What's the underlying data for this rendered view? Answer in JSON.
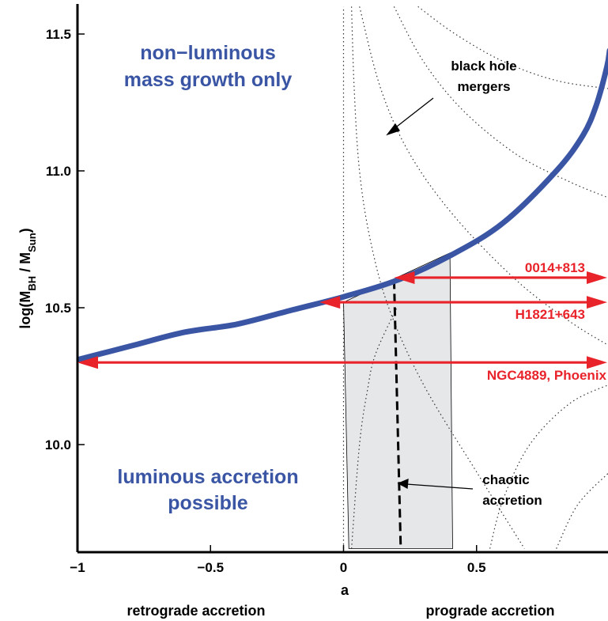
{
  "chart_data": {
    "type": "line",
    "xlabel": "a",
    "ylabel_main": "log(M",
    "ylabel_sub1": "BH",
    "ylabel_mid": " / M",
    "ylabel_sub2": "Sun",
    "ylabel_end": ")",
    "xlim": [
      -1,
      1
    ],
    "ylim": [
      9.62,
      11.6
    ],
    "x_ticks": [
      {
        "value": -1,
        "label": "−1"
      },
      {
        "value": -0.5,
        "label": "−0.5"
      },
      {
        "value": 0,
        "label": "0"
      },
      {
        "value": 0.5,
        "label": "0.5"
      }
    ],
    "y_ticks": [
      {
        "value": 10.0,
        "label": "10.0"
      },
      {
        "value": 10.5,
        "label": "10.5"
      },
      {
        "value": 11.0,
        "label": "11.0"
      },
      {
        "value": 11.5,
        "label": "11.5"
      }
    ],
    "grid": false,
    "curve": {
      "color": "#3a55a4",
      "points": [
        [
          -1.0,
          10.31
        ],
        [
          -0.8,
          10.36
        ],
        [
          -0.6,
          10.41
        ],
        [
          -0.4,
          10.44
        ],
        [
          -0.2,
          10.49
        ],
        [
          0.0,
          10.54
        ],
        [
          0.2,
          10.6
        ],
        [
          0.4,
          10.69
        ],
        [
          0.6,
          10.81
        ],
        [
          0.8,
          11.0
        ],
        [
          0.9,
          11.13
        ],
        [
          0.95,
          11.24
        ],
        [
          0.99,
          11.38
        ],
        [
          1.0,
          11.44
        ]
      ]
    },
    "chaotic_band": {
      "color": "#e6e7e9",
      "corners": [
        [
          0.0,
          10.52
        ],
        [
          0.4,
          10.7
        ],
        [
          0.41,
          9.62
        ],
        [
          0.02,
          9.62
        ]
      ],
      "center_line": [
        [
          0.19,
          10.6
        ],
        [
          0.215,
          9.62
        ]
      ]
    },
    "merger_contours": [
      [
        [
          0.0,
          9.62
        ],
        [
          0.0,
          11.6
        ]
      ],
      [
        [
          0.03,
          11.6
        ],
        [
          0.04,
          11.3
        ],
        [
          0.06,
          11.0
        ],
        [
          0.1,
          10.75
        ],
        [
          0.17,
          10.5
        ],
        [
          0.3,
          10.22
        ],
        [
          0.5,
          9.9
        ],
        [
          0.68,
          9.62
        ]
      ],
      [
        [
          0.06,
          11.6
        ],
        [
          0.14,
          11.3
        ],
        [
          0.25,
          11.06
        ],
        [
          0.42,
          10.83
        ],
        [
          0.65,
          10.6
        ],
        [
          0.85,
          10.45
        ],
        [
          1.0,
          10.36
        ]
      ],
      [
        [
          0.19,
          11.6
        ],
        [
          0.3,
          11.4
        ],
        [
          0.45,
          11.22
        ],
        [
          0.65,
          11.06
        ],
        [
          0.85,
          10.96
        ],
        [
          1.0,
          10.9
        ]
      ],
      [
        [
          0.28,
          11.6
        ],
        [
          0.42,
          11.5
        ],
        [
          0.6,
          11.4
        ],
        [
          0.8,
          11.33
        ],
        [
          1.0,
          11.3
        ]
      ],
      [
        [
          0.03,
          9.62
        ],
        [
          0.06,
          10.0
        ],
        [
          0.09,
          10.2
        ],
        [
          0.12,
          10.33
        ],
        [
          0.2,
          10.5
        ]
      ],
      [
        [
          0.55,
          9.62
        ],
        [
          0.6,
          9.8
        ],
        [
          0.7,
          10.0
        ],
        [
          0.85,
          10.15
        ],
        [
          1.0,
          10.22
        ]
      ],
      [
        [
          0.8,
          9.62
        ],
        [
          0.88,
          9.78
        ],
        [
          1.0,
          9.9
        ]
      ]
    ],
    "arrows": [
      {
        "label": "0014+813",
        "from": 1.0,
        "to": 0.19,
        "y": 10.61
      },
      {
        "label": "H1821+643",
        "from": 1.0,
        "to": -0.09,
        "y": 10.52
      },
      {
        "label": "NGC4889, Phoenix",
        "from": 1.0,
        "to": -1.0,
        "y": 10.3
      }
    ],
    "arrow_color": "#e8232a"
  },
  "annotations": {
    "non_luminous_line1": "non−luminous",
    "non_luminous_line2": "mass growth only",
    "luminous_line1": "luminous accretion",
    "luminous_line2": "possible",
    "black_hole_line1": "black hole",
    "black_hole_line2": "mergers",
    "chaotic_line1": "chaotic",
    "chaotic_line2": "accretion",
    "retrograde": "retrograde accretion",
    "prograde": "prograde accretion"
  }
}
